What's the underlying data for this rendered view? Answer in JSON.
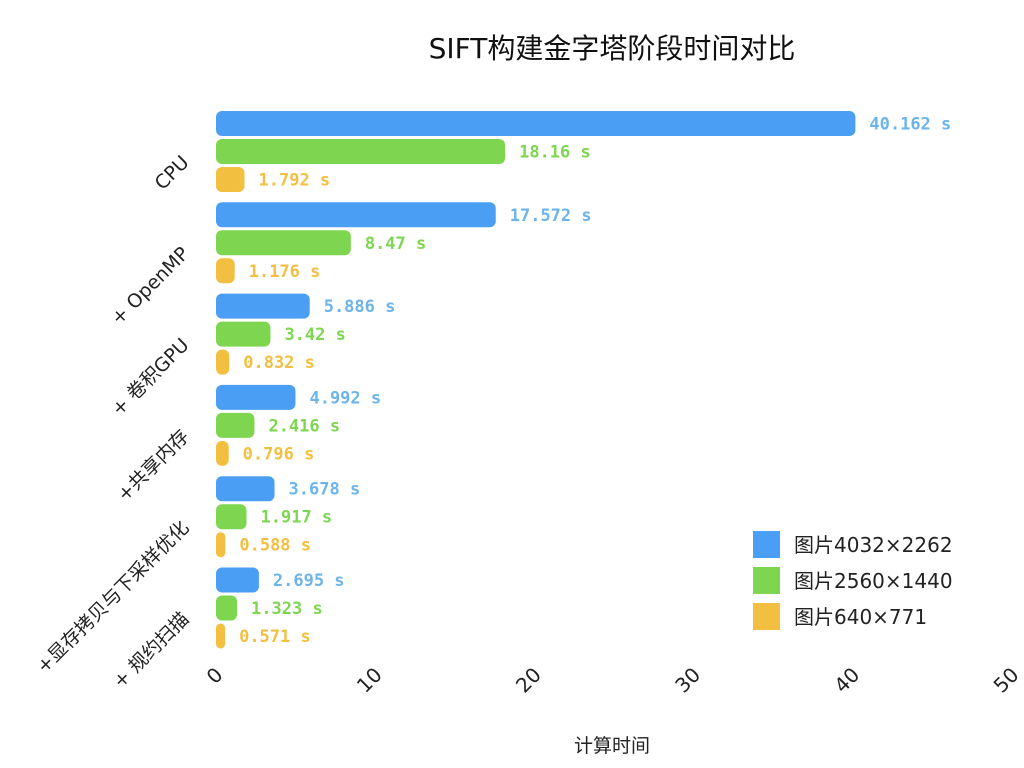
{
  "chart_data": {
    "type": "bar",
    "orientation": "horizontal",
    "title": "SIFT构建金字塔阶段时间对比",
    "xlabel": "计算时间",
    "ylabel": "",
    "xlim": [
      0,
      50
    ],
    "xticks": [
      "0",
      "10",
      "20",
      "30",
      "40",
      "50"
    ],
    "categories": [
      "CPU",
      "+ OpenMP",
      "+ 卷积GPU",
      "+共享内存",
      "+显存拷贝与下采样优化",
      "+ 规约扫描"
    ],
    "grid": false,
    "legend_position": "bottom-right",
    "value_suffix": " s",
    "series": [
      {
        "name": "图片4032×2262",
        "color": "#4a9ff5",
        "label_color": "#6cb4ea",
        "values": [
          40.162,
          17.572,
          5.886,
          4.992,
          3.678,
          2.695
        ]
      },
      {
        "name": "图片2560×1440",
        "color": "#7ed650",
        "label_color": "#7ed650",
        "values": [
          18.16,
          8.47,
          3.42,
          2.416,
          1.917,
          1.323
        ]
      },
      {
        "name": "图片640×771",
        "color": "#f2bf40",
        "label_color": "#f2bf40",
        "values": [
          1.792,
          1.176,
          0.832,
          0.796,
          0.588,
          0.571
        ]
      }
    ]
  }
}
